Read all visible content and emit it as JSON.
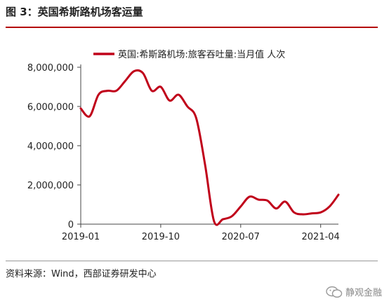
{
  "figure_title": "图 3：英国希斯路机场客运量",
  "source_note": "资料来源：Wind，西部证券研发中心",
  "watermark": {
    "text": "静观金融",
    "icon": "wechat-icon"
  },
  "colors": {
    "series": "#c0001a",
    "rule": "#b40000"
  },
  "chart_data": {
    "type": "line",
    "title": "图 3：英国希斯路机场客运量",
    "xlabel": "",
    "ylabel": "",
    "legend": {
      "position": "top",
      "entries": [
        "英国:希斯路机场:旅客吞吐量:当月值 人次"
      ]
    },
    "grid": false,
    "ylim": [
      0,
      8000000
    ],
    "yticks": [
      0,
      2000000,
      4000000,
      6000000,
      8000000
    ],
    "ytick_labels": [
      "0",
      "2,000,000",
      "4,000,000",
      "6,000,000",
      "8,000,000"
    ],
    "xtick_labels": [
      "2019-01",
      "2019-10",
      "2020-07",
      "2021-04"
    ],
    "x": [
      "2019-01",
      "2019-02",
      "2019-03",
      "2019-04",
      "2019-05",
      "2019-06",
      "2019-07",
      "2019-08",
      "2019-09",
      "2019-10",
      "2019-11",
      "2019-12",
      "2020-01",
      "2020-02",
      "2020-03",
      "2020-04",
      "2020-05",
      "2020-06",
      "2020-07",
      "2020-08",
      "2020-09",
      "2020-10",
      "2020-11",
      "2020-12",
      "2021-01",
      "2021-02",
      "2021-03",
      "2021-04",
      "2021-05",
      "2021-06"
    ],
    "series": [
      {
        "name": "英国:希斯路机场:旅客吞吐量:当月值 人次",
        "values": [
          5900000,
          5500000,
          6600000,
          6800000,
          6800000,
          7300000,
          7800000,
          7700000,
          6800000,
          7000000,
          6300000,
          6600000,
          6000000,
          5400000,
          3000000,
          150000,
          250000,
          400000,
          900000,
          1400000,
          1250000,
          1200000,
          800000,
          1150000,
          600000,
          500000,
          550000,
          600000,
          900000,
          1500000
        ]
      }
    ]
  }
}
